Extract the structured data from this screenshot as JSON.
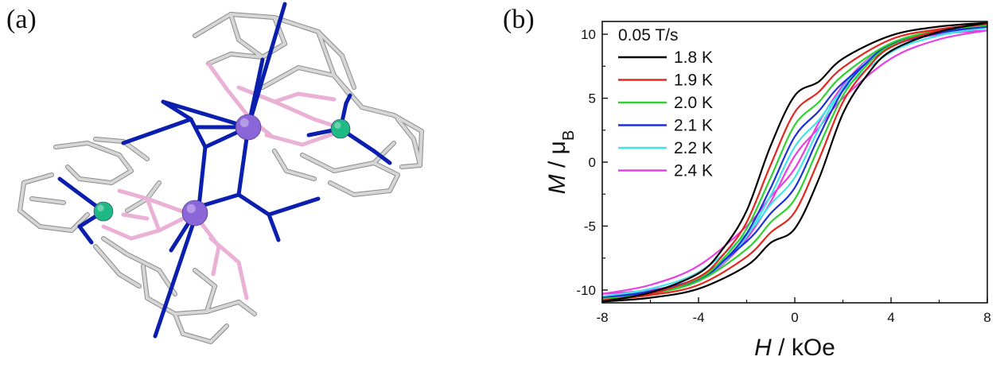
{
  "panel_a": {
    "label": "(a)",
    "colors": {
      "carbon_bond": "#d6d6d6",
      "carbon_outline": "#8a8a8a",
      "nitrogen_bond": "#0b1fae",
      "oxygen_bond": "#eab0d6",
      "dy_atom": "#8a66d8",
      "ni_atom": "#1fb985"
    }
  },
  "panel_b": {
    "label": "(b)"
  },
  "chart_data": {
    "type": "line",
    "title": "",
    "xlabel_symbol": "H",
    "xlabel_unit": " / kOe",
    "ylabel_symbol": "M",
    "ylabel_sep": " / ",
    "ylabel_mu": "μ",
    "ylabel_sub": "B",
    "xlim": [
      -8,
      8
    ],
    "ylim": [
      -11,
      11
    ],
    "xticks": [
      -8,
      -4,
      0,
      4,
      8
    ],
    "yticks": [
      -10,
      -5,
      0,
      5,
      10
    ],
    "legend_title": "0.05 T/s",
    "legend_position": "top-left",
    "grid": false,
    "series": [
      {
        "name": "1.8 K",
        "color": "#000000",
        "coercive_field": 1.0,
        "ascending": [
          [
            -8,
            -10.9
          ],
          [
            -6,
            -10.6
          ],
          [
            -4,
            -9.9
          ],
          [
            -2,
            -8.1
          ],
          [
            -1,
            -6.3
          ],
          [
            0,
            -5.2
          ],
          [
            1,
            -1.3
          ],
          [
            2,
            3.8
          ],
          [
            3,
            6.8
          ],
          [
            4,
            8.7
          ],
          [
            6,
            10.2
          ],
          [
            8,
            10.9
          ]
        ],
        "descending": [
          [
            8,
            10.9
          ],
          [
            6,
            10.6
          ],
          [
            4,
            9.9
          ],
          [
            2,
            8.1
          ],
          [
            1,
            6.3
          ],
          [
            0,
            5.2
          ],
          [
            -1,
            1.3
          ],
          [
            -2,
            -3.8
          ],
          [
            -3,
            -6.8
          ],
          [
            -4,
            -8.7
          ],
          [
            -6,
            -10.2
          ],
          [
            -8,
            -10.9
          ]
        ]
      },
      {
        "name": "1.9 K",
        "color": "#e3261f",
        "coercive_field": 0.75,
        "ascending": [
          [
            -8,
            -10.8
          ],
          [
            -6,
            -10.4
          ],
          [
            -4,
            -9.6
          ],
          [
            -2,
            -7.4
          ],
          [
            -1,
            -5.5
          ],
          [
            0,
            -3.9
          ],
          [
            1,
            0.2
          ],
          [
            2,
            4.7
          ],
          [
            3,
            7.3
          ],
          [
            4,
            9.0
          ],
          [
            6,
            10.3
          ],
          [
            8,
            10.8
          ]
        ],
        "descending": [
          [
            8,
            10.8
          ],
          [
            6,
            10.4
          ],
          [
            4,
            9.6
          ],
          [
            2,
            7.4
          ],
          [
            1,
            5.5
          ],
          [
            0,
            3.9
          ],
          [
            -1,
            -0.2
          ],
          [
            -2,
            -4.7
          ],
          [
            -3,
            -7.3
          ],
          [
            -4,
            -9.0
          ],
          [
            -6,
            -10.3
          ],
          [
            -8,
            -10.8
          ]
        ]
      },
      {
        "name": "2.0 K",
        "color": "#2fd12f",
        "coercive_field": 0.55,
        "ascending": [
          [
            -8,
            -10.7
          ],
          [
            -6,
            -10.3
          ],
          [
            -4,
            -9.3
          ],
          [
            -2,
            -6.8
          ],
          [
            -1,
            -4.7
          ],
          [
            0,
            -2.9
          ],
          [
            1,
            1.2
          ],
          [
            2,
            5.2
          ],
          [
            3,
            7.6
          ],
          [
            4,
            9.1
          ],
          [
            6,
            10.3
          ],
          [
            8,
            10.7
          ]
        ],
        "descending": [
          [
            8,
            10.7
          ],
          [
            6,
            10.3
          ],
          [
            4,
            9.3
          ],
          [
            2,
            6.8
          ],
          [
            1,
            4.7
          ],
          [
            0,
            2.9
          ],
          [
            -1,
            -1.2
          ],
          [
            -2,
            -5.2
          ],
          [
            -3,
            -7.6
          ],
          [
            -4,
            -9.1
          ],
          [
            -6,
            -10.3
          ],
          [
            -8,
            -10.7
          ]
        ]
      },
      {
        "name": "2.1 K",
        "color": "#1f2fd9",
        "coercive_field": 0.4,
        "ascending": [
          [
            -8,
            -10.6
          ],
          [
            -6,
            -10.1
          ],
          [
            -4,
            -9.0
          ],
          [
            -2,
            -6.2
          ],
          [
            -1,
            -4.0
          ],
          [
            0,
            -2.0
          ],
          [
            1,
            2.0
          ],
          [
            2,
            5.6
          ],
          [
            3,
            7.8
          ],
          [
            4,
            9.2
          ],
          [
            6,
            10.2
          ],
          [
            8,
            10.6
          ]
        ],
        "descending": [
          [
            8,
            10.6
          ],
          [
            6,
            10.1
          ],
          [
            4,
            9.0
          ],
          [
            2,
            6.2
          ],
          [
            1,
            4.0
          ],
          [
            0,
            2.0
          ],
          [
            -1,
            -2.0
          ],
          [
            -2,
            -5.6
          ],
          [
            -3,
            -7.8
          ],
          [
            -4,
            -9.2
          ],
          [
            -6,
            -10.2
          ],
          [
            -8,
            -10.6
          ]
        ]
      },
      {
        "name": "2.2 K",
        "color": "#3fe4ea",
        "coercive_field": 0.25,
        "ascending": [
          [
            -8,
            -10.5
          ],
          [
            -6,
            -9.9
          ],
          [
            -4,
            -8.6
          ],
          [
            -2,
            -5.6
          ],
          [
            -1,
            -3.3
          ],
          [
            0,
            -1.2
          ],
          [
            1,
            2.6
          ],
          [
            2,
            5.8
          ],
          [
            3,
            7.9
          ],
          [
            4,
            9.2
          ],
          [
            6,
            10.1
          ],
          [
            8,
            10.5
          ]
        ],
        "descending": [
          [
            8,
            10.5
          ],
          [
            6,
            9.9
          ],
          [
            4,
            8.6
          ],
          [
            2,
            5.6
          ],
          [
            1,
            3.3
          ],
          [
            0,
            1.2
          ],
          [
            -1,
            -2.6
          ],
          [
            -2,
            -5.8
          ],
          [
            -3,
            -7.9
          ],
          [
            -4,
            -9.2
          ],
          [
            -6,
            -10.1
          ],
          [
            -8,
            -10.5
          ]
        ]
      },
      {
        "name": "2.4 K",
        "color": "#e840e0",
        "coercive_field": 0.1,
        "ascending": [
          [
            -8,
            -10.3
          ],
          [
            -6,
            -9.6
          ],
          [
            -4,
            -8.1
          ],
          [
            -2,
            -5.0
          ],
          [
            -1,
            -2.7
          ],
          [
            0,
            -0.5
          ],
          [
            1,
            3.1
          ],
          [
            2,
            6.0
          ],
          [
            3,
            8.0
          ],
          [
            4,
            9.2
          ],
          [
            6,
            10.0
          ],
          [
            8,
            10.3
          ]
        ],
        "descending": [
          [
            8,
            10.3
          ],
          [
            6,
            9.6
          ],
          [
            4,
            8.1
          ],
          [
            2,
            5.0
          ],
          [
            1,
            2.7
          ],
          [
            0,
            0.5
          ],
          [
            -1,
            -3.1
          ],
          [
            -2,
            -6.0
          ],
          [
            -3,
            -8.0
          ],
          [
            -4,
            -9.2
          ],
          [
            -6,
            -10.0
          ],
          [
            -8,
            -10.3
          ]
        ]
      }
    ]
  }
}
